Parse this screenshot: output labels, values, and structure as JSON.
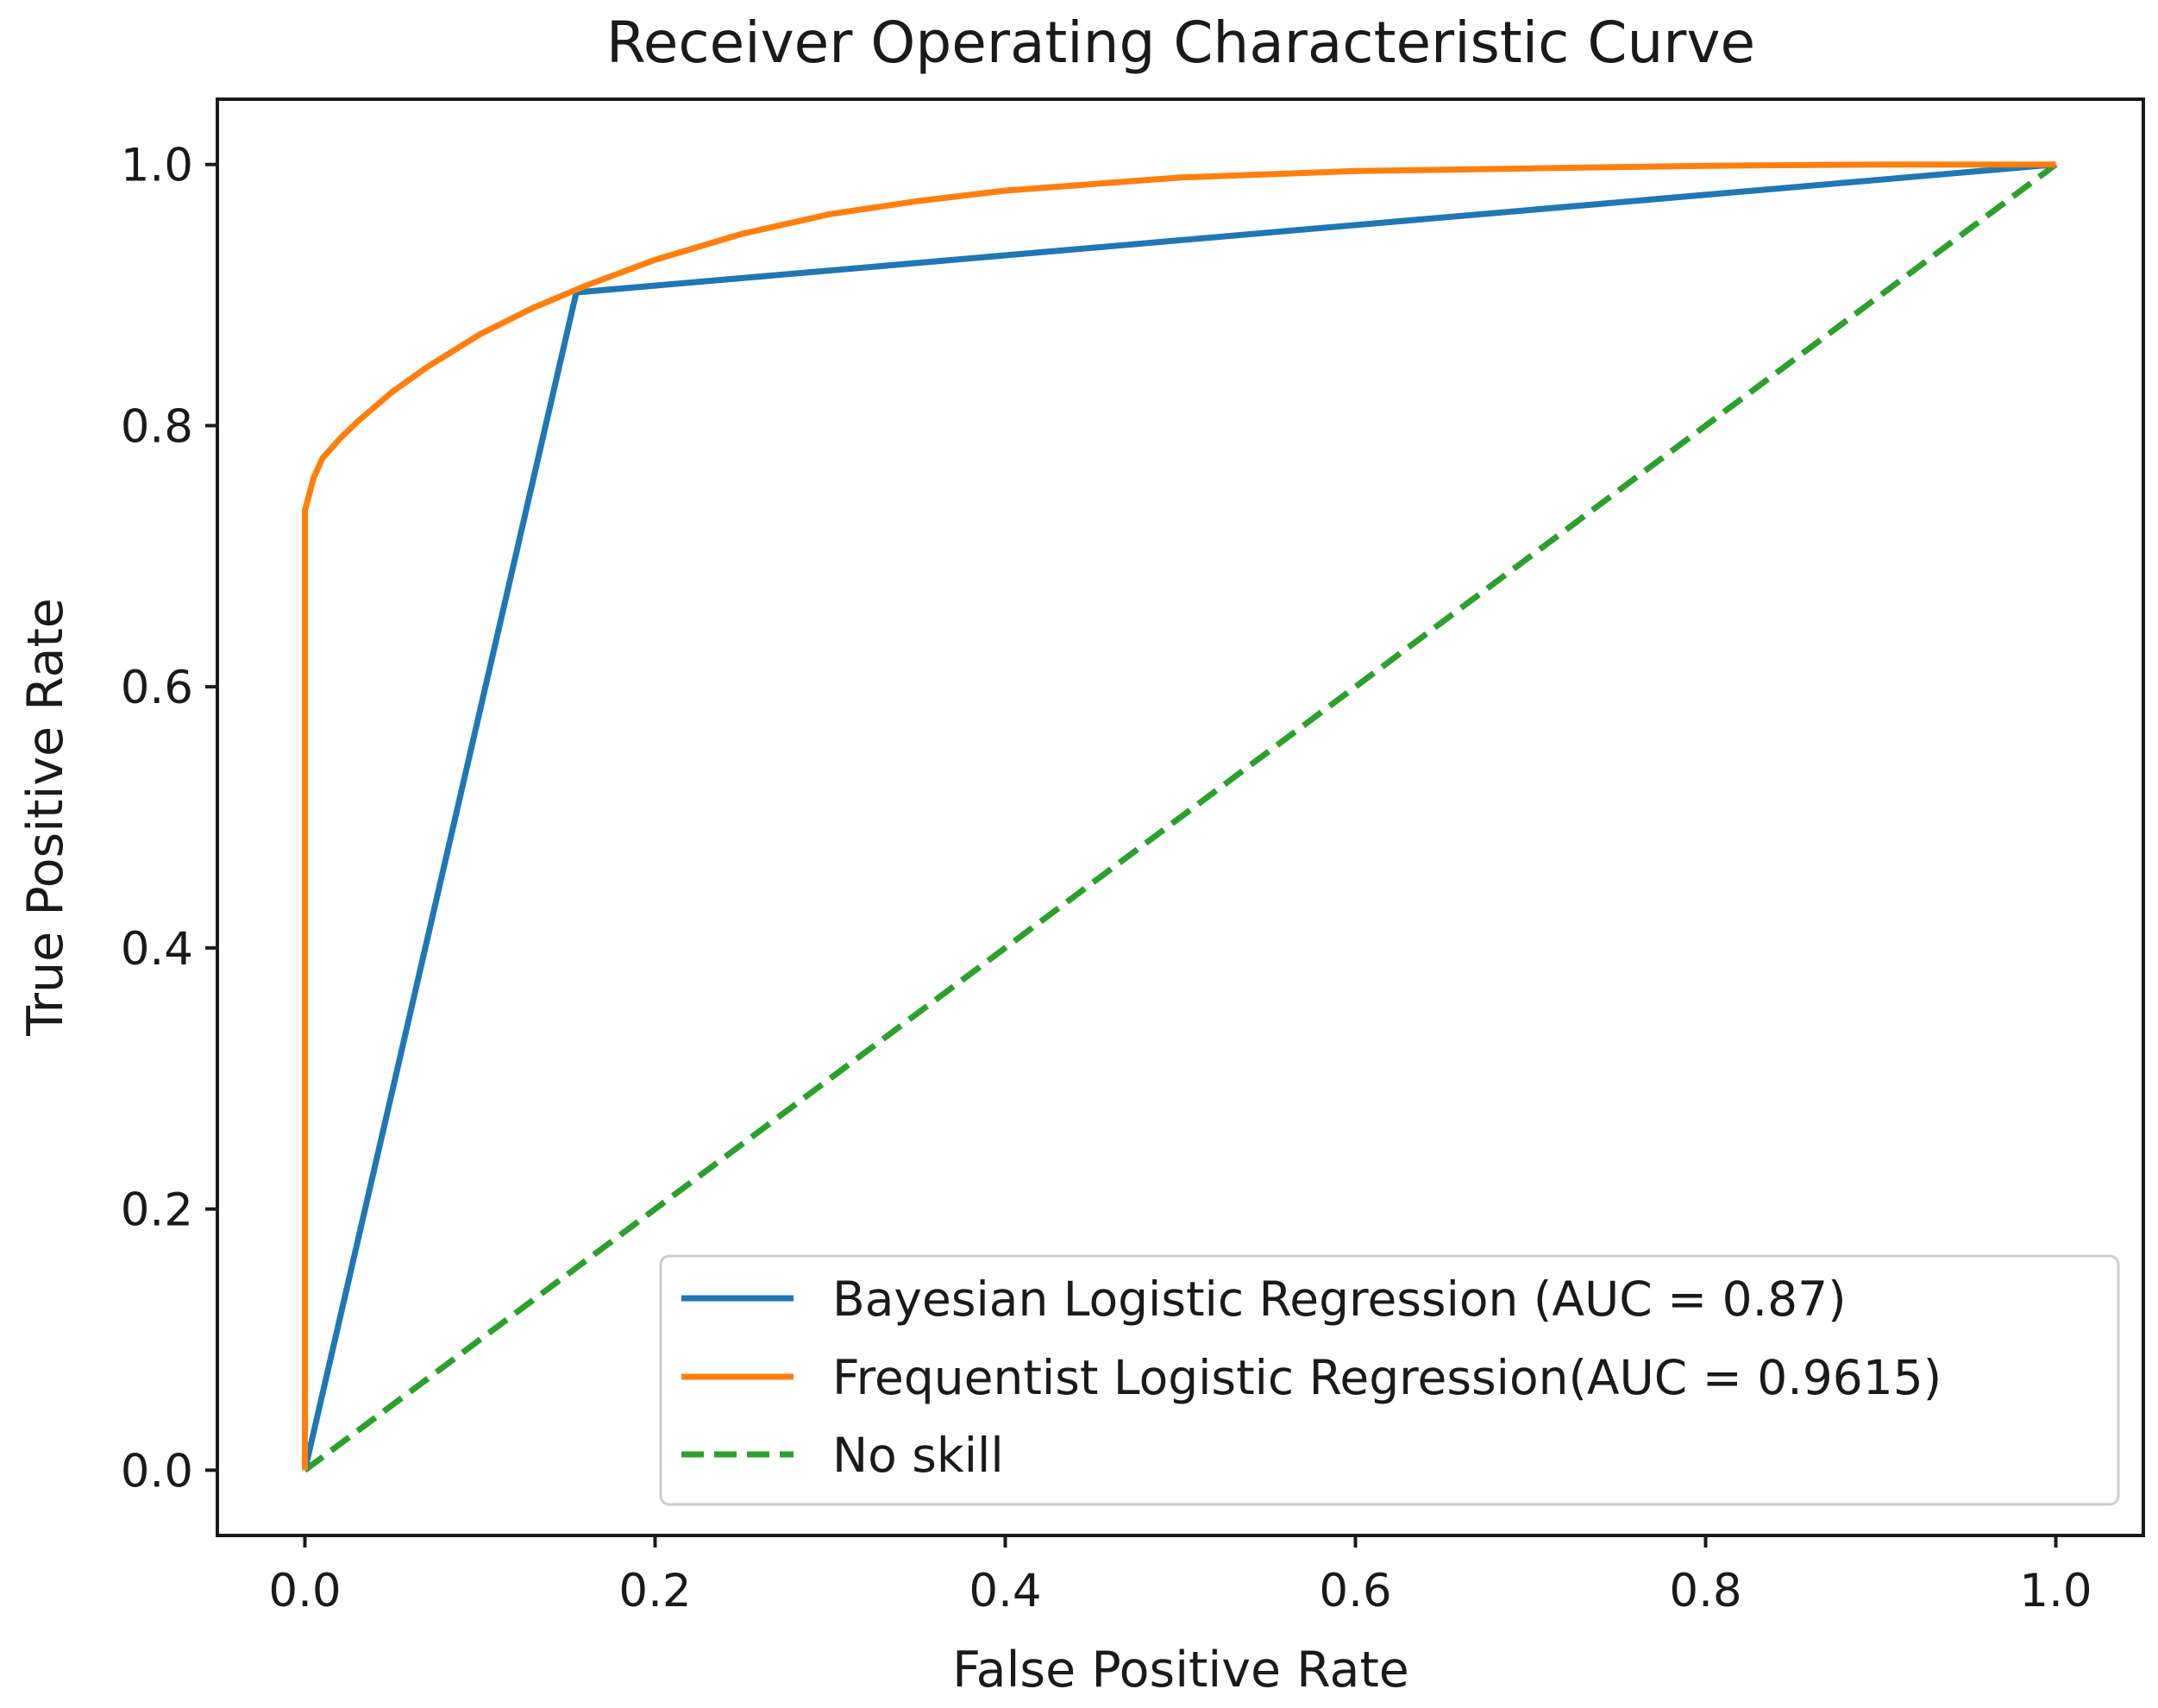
{
  "chart_data": {
    "type": "line",
    "title": "Receiver Operating Characteristic Curve",
    "xlabel": "False Positive Rate",
    "ylabel": "True Positive Rate",
    "xlim": [
      -0.05,
      1.05
    ],
    "ylim": [
      -0.05,
      1.05
    ],
    "xticks": [
      0.0,
      0.2,
      0.4,
      0.6,
      0.8,
      1.0
    ],
    "yticks": [
      0.0,
      0.2,
      0.4,
      0.6,
      0.8,
      1.0
    ],
    "xtick_labels": [
      "0.0",
      "0.2",
      "0.4",
      "0.6",
      "0.8",
      "1.0"
    ],
    "ytick_labels": [
      "0.0",
      "0.2",
      "0.4",
      "0.6",
      "0.8",
      "1.0"
    ],
    "grid": false,
    "legend_position": "lower-right",
    "series": [
      {
        "name": "Bayesian Logistic Regression (AUC = 0.87)",
        "color": "#1f77b4",
        "style": "solid",
        "x": [
          0.0,
          0.155,
          1.0
        ],
        "y": [
          0.0,
          0.902,
          1.0
        ]
      },
      {
        "name": "Frequentist Logistic Regression(AUC = 0.9615)",
        "color": "#ff7f0e",
        "style": "solid",
        "x": [
          0.0,
          0.0,
          0.0,
          0.002,
          0.005,
          0.01,
          0.02,
          0.03,
          0.05,
          0.07,
          0.1,
          0.13,
          0.16,
          0.2,
          0.25,
          0.3,
          0.35,
          0.4,
          0.5,
          0.6,
          0.7,
          0.8,
          0.9,
          1.0
        ],
        "y": [
          0.0,
          0.55,
          0.735,
          0.745,
          0.76,
          0.775,
          0.79,
          0.803,
          0.826,
          0.845,
          0.87,
          0.89,
          0.907,
          0.927,
          0.947,
          0.962,
          0.972,
          0.98,
          0.99,
          0.995,
          0.997,
          0.999,
          1.0,
          1.0
        ]
      },
      {
        "name": "No skill",
        "color": "#2ca02c",
        "style": "dashed",
        "x": [
          0.0,
          1.0
        ],
        "y": [
          0.0,
          1.0
        ]
      }
    ]
  }
}
